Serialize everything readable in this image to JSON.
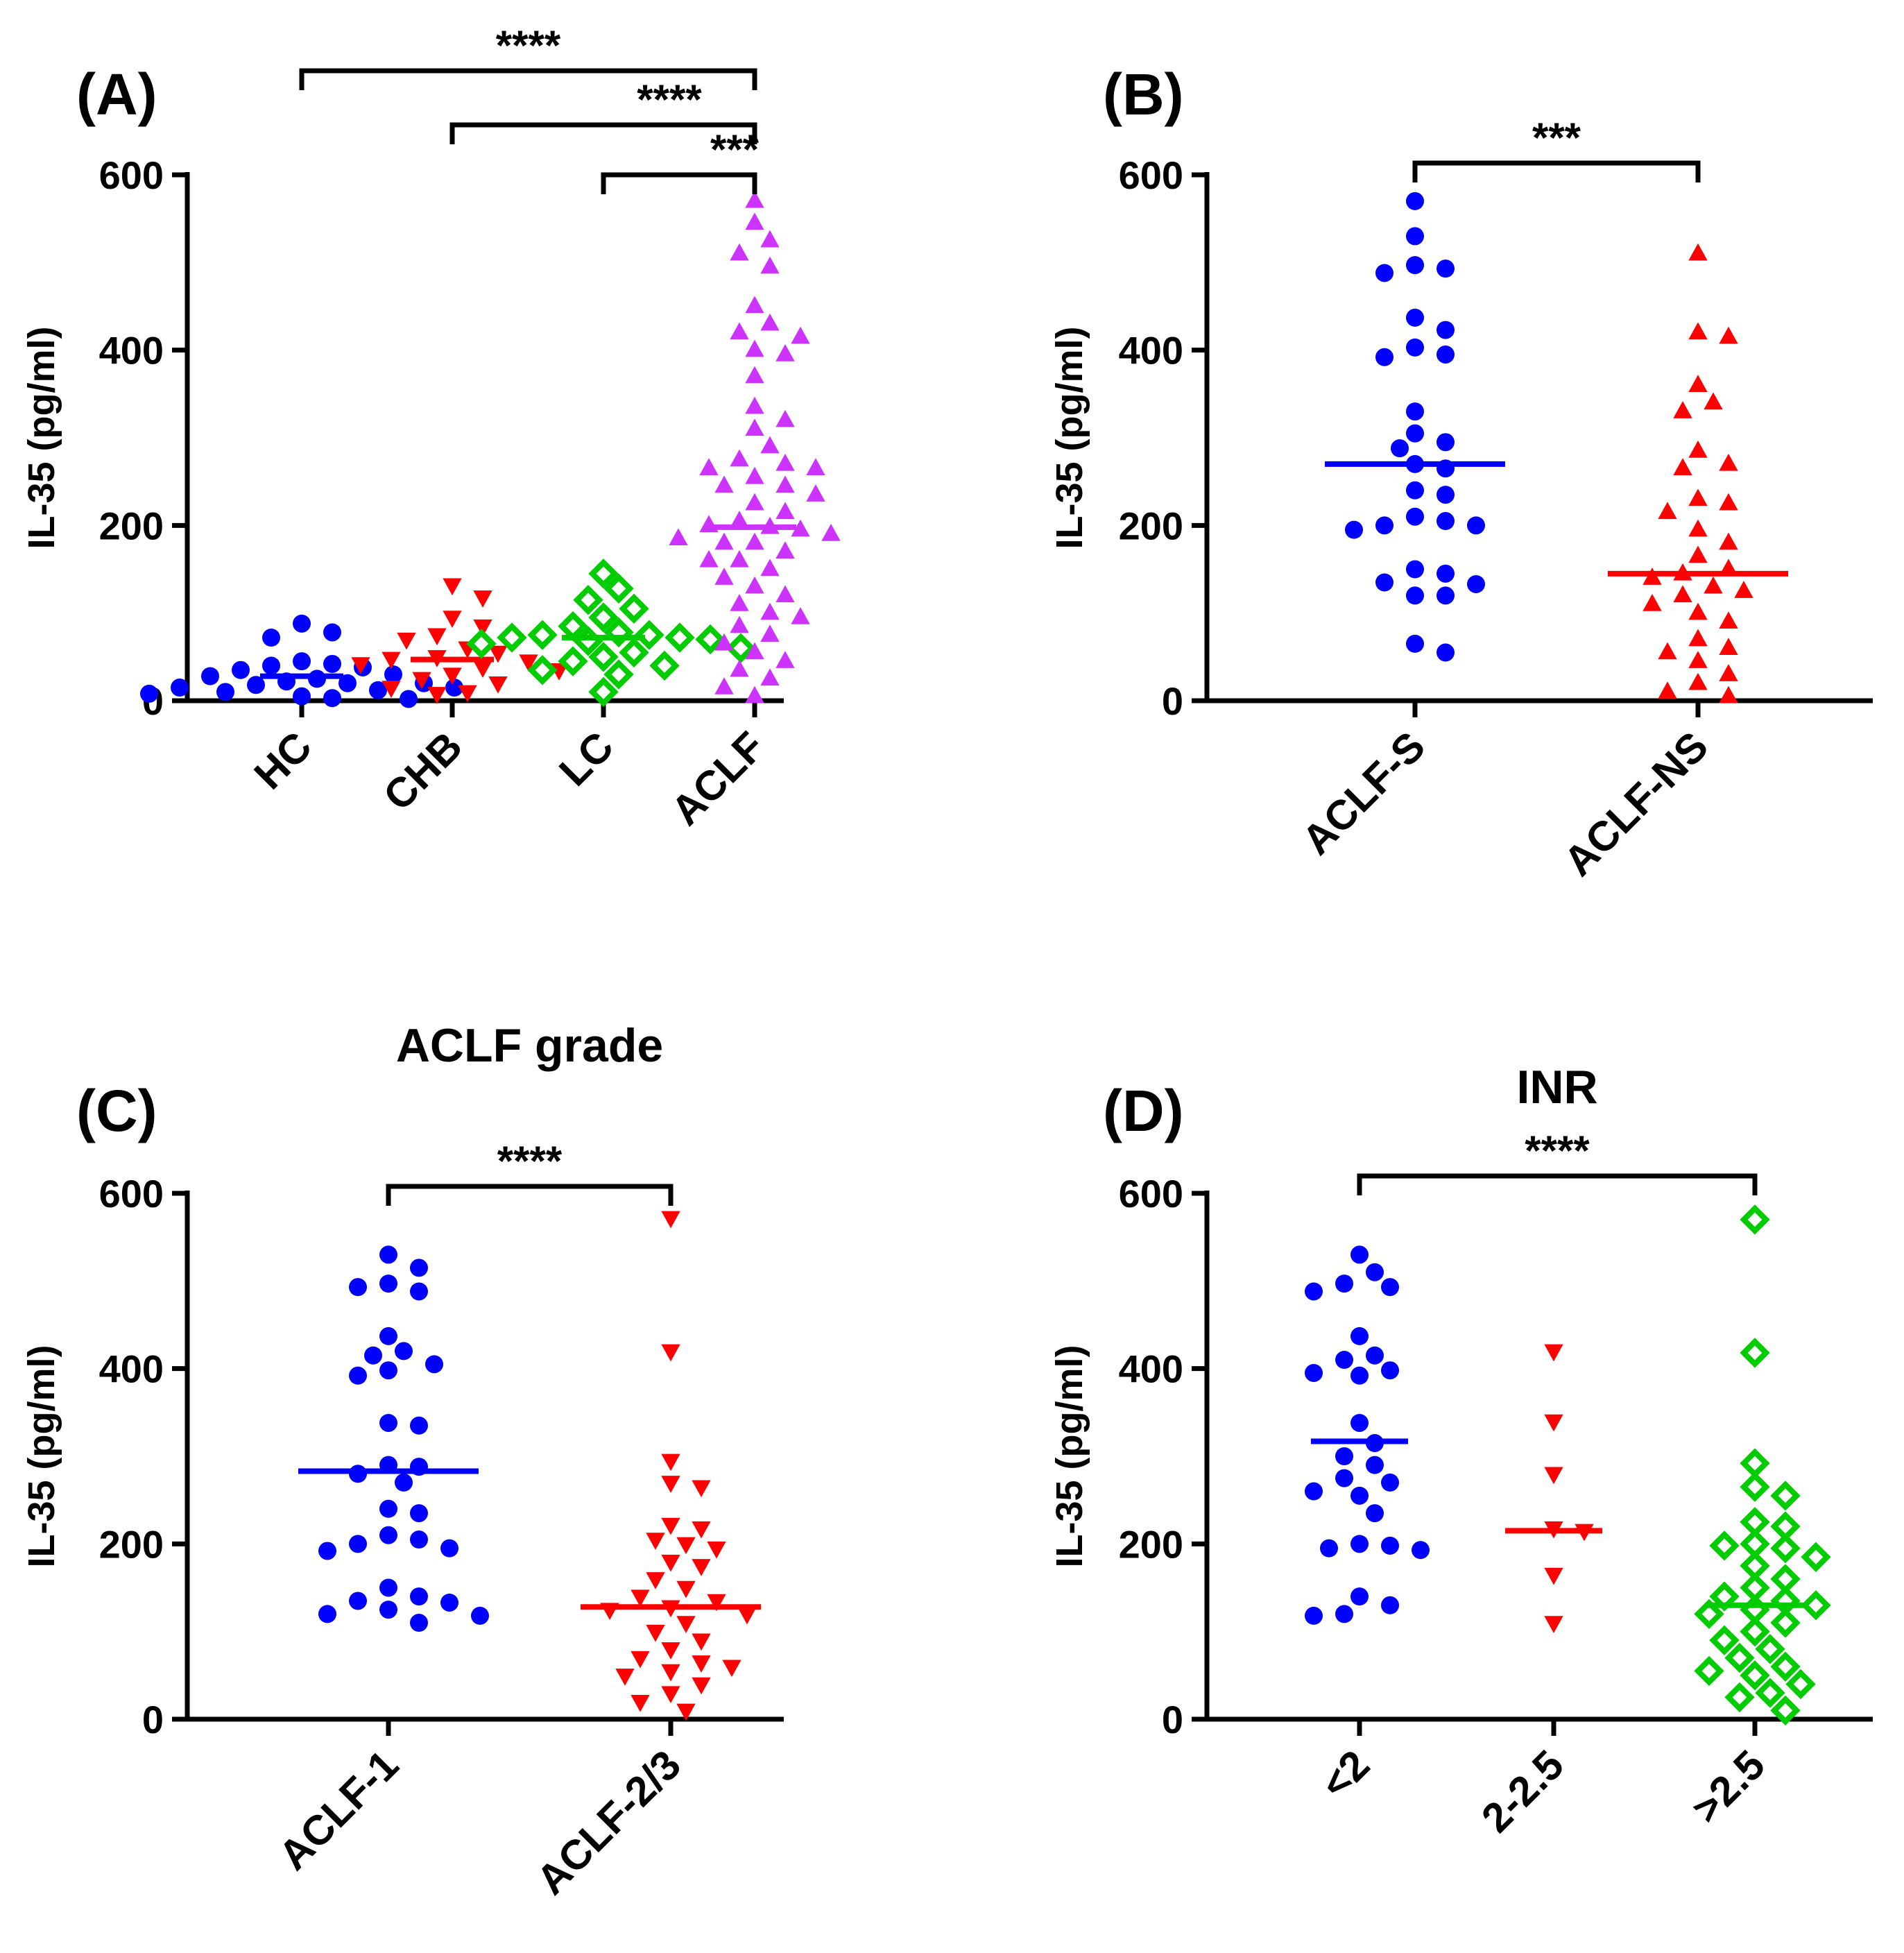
{
  "chart_data": [
    {
      "panel": "(A)",
      "type": "scatter",
      "title": "",
      "ylabel": "IL-35 (pg/ml)",
      "ylim": [
        0,
        600
      ],
      "yticks": [
        0,
        200,
        400,
        600
      ],
      "categories": [
        "HC",
        "CHB",
        "LC",
        "ACLF"
      ],
      "series": [
        {
          "name": "HC",
          "color": "#0000ff",
          "marker": "circle",
          "median": 28,
          "values": [
            88,
            78,
            72,
            45,
            42,
            40,
            38,
            35,
            30,
            28,
            25,
            22,
            20,
            18,
            15,
            12,
            10,
            8,
            5,
            3,
            2,
            20,
            15
          ]
        },
        {
          "name": "CHB",
          "color": "#ff0000",
          "marker": "triangle-down",
          "median": 47,
          "values": [
            132,
            118,
            95,
            85,
            75,
            70,
            60,
            55,
            50,
            48,
            45,
            42,
            38,
            35,
            30,
            25,
            20,
            15,
            10,
            8
          ]
        },
        {
          "name": "LC",
          "color": "#00cc00",
          "marker": "diamond",
          "median": 72,
          "values": [
            145,
            128,
            115,
            105,
            95,
            85,
            78,
            75,
            72,
            70,
            68,
            65,
            60,
            55,
            50,
            45,
            40,
            35,
            30,
            10,
            75,
            72
          ]
        },
        {
          "name": "ACLF",
          "color": "#cc33ff",
          "marker": "triangle-up",
          "median": 198,
          "values": [
            570,
            545,
            525,
            510,
            495,
            450,
            430,
            420,
            415,
            400,
            395,
            370,
            335,
            320,
            310,
            290,
            275,
            270,
            265,
            255,
            245,
            235,
            225,
            215,
            205,
            200,
            198,
            195,
            190,
            185,
            180,
            170,
            160,
            150,
            140,
            130,
            120,
            110,
            100,
            95,
            85,
            75,
            65,
            55,
            45,
            35,
            25,
            15,
            5,
            265,
            245,
            180,
            160
          ]
        }
      ],
      "significance": [
        {
          "from": "HC",
          "to": "ACLF",
          "label": "****"
        },
        {
          "from": "CHB",
          "to": "ACLF",
          "label": "****"
        },
        {
          "from": "LC",
          "to": "ACLF",
          "label": "***"
        }
      ]
    },
    {
      "panel": "(B)",
      "type": "scatter",
      "title": "",
      "ylabel": "IL-35 (pg/ml)",
      "ylim": [
        0,
        600
      ],
      "yticks": [
        0,
        200,
        400,
        600
      ],
      "categories": [
        "ACLF-S",
        "ACLF-NS"
      ],
      "series": [
        {
          "name": "ACLF-S",
          "color": "#0000ff",
          "marker": "circle",
          "median": 270,
          "values": [
            570,
            530,
            497,
            493,
            488,
            437,
            423,
            403,
            395,
            392,
            330,
            305,
            295,
            288,
            270,
            265,
            240,
            235,
            210,
            205,
            200,
            200,
            195,
            150,
            145,
            135,
            133,
            120,
            120,
            65,
            55
          ]
        },
        {
          "name": "ACLF-NS",
          "color": "#ff0000",
          "marker": "triangle-up",
          "median": 145,
          "values": [
            510,
            420,
            415,
            360,
            340,
            330,
            285,
            270,
            265,
            230,
            225,
            215,
            195,
            180,
            165,
            150,
            145,
            140,
            130,
            125,
            120,
            110,
            100,
            90,
            70,
            60,
            55,
            45,
            30,
            20,
            10,
            5
          ]
        }
      ],
      "significance": [
        {
          "from": "ACLF-S",
          "to": "ACLF-NS",
          "label": "***"
        }
      ]
    },
    {
      "panel": "(C)",
      "type": "scatter",
      "title": "ACLF grade",
      "ylabel": "IL-35 (pg/ml)",
      "ylim": [
        0,
        600
      ],
      "yticks": [
        0,
        200,
        400,
        600
      ],
      "categories": [
        "ACLF-1",
        "ACLF-2/3"
      ],
      "series": [
        {
          "name": "ACLF-1",
          "color": "#0000ff",
          "marker": "circle",
          "median": 283,
          "values": [
            530,
            515,
            497,
            493,
            488,
            437,
            420,
            415,
            405,
            398,
            392,
            338,
            335,
            290,
            288,
            280,
            270,
            240,
            235,
            210,
            205,
            200,
            195,
            192,
            150,
            140,
            135,
            133,
            125,
            120,
            118,
            110
          ]
        },
        {
          "name": "ACLF-2/3",
          "color": "#ff0000",
          "marker": "triangle-down",
          "median": 128,
          "values": [
            572,
            420,
            295,
            270,
            265,
            222,
            218,
            205,
            200,
            195,
            180,
            175,
            160,
            150,
            140,
            135,
            128,
            125,
            120,
            110,
            100,
            90,
            80,
            70,
            65,
            60,
            55,
            50,
            40,
            30,
            20,
            10
          ]
        }
      ],
      "significance": [
        {
          "from": "ACLF-1",
          "to": "ACLF-2/3",
          "label": "****"
        }
      ]
    },
    {
      "panel": "(D)",
      "type": "scatter",
      "title": "INR",
      "ylabel": "IL-35 (pg/ml)",
      "ylim": [
        0,
        600
      ],
      "yticks": [
        0,
        200,
        400,
        600
      ],
      "categories": [
        "<2",
        "2-2.5",
        ">2.5"
      ],
      "series": [
        {
          "name": "<2",
          "color": "#0000ff",
          "marker": "circle",
          "median": 317,
          "values": [
            530,
            510,
            497,
            493,
            488,
            437,
            415,
            410,
            398,
            395,
            392,
            338,
            315,
            300,
            290,
            275,
            270,
            260,
            255,
            235,
            200,
            198,
            195,
            193,
            140,
            130,
            120,
            118
          ]
        },
        {
          "name": "2-2.5",
          "color": "#ff0000",
          "marker": "triangle-down",
          "median": 215,
          "values": [
            420,
            340,
            280,
            218,
            215,
            165,
            110
          ]
        },
        {
          "name": ">2.5",
          "color": "#00cc00",
          "marker": "diamond",
          "median": 130,
          "values": [
            570,
            418,
            292,
            265,
            255,
            225,
            220,
            200,
            198,
            195,
            185,
            175,
            160,
            150,
            140,
            135,
            130,
            125,
            120,
            110,
            100,
            90,
            80,
            70,
            60,
            55,
            50,
            40,
            30,
            25,
            10
          ]
        }
      ],
      "significance": [
        {
          "from": "<2",
          "to": ">2.5",
          "label": "****"
        }
      ]
    }
  ]
}
